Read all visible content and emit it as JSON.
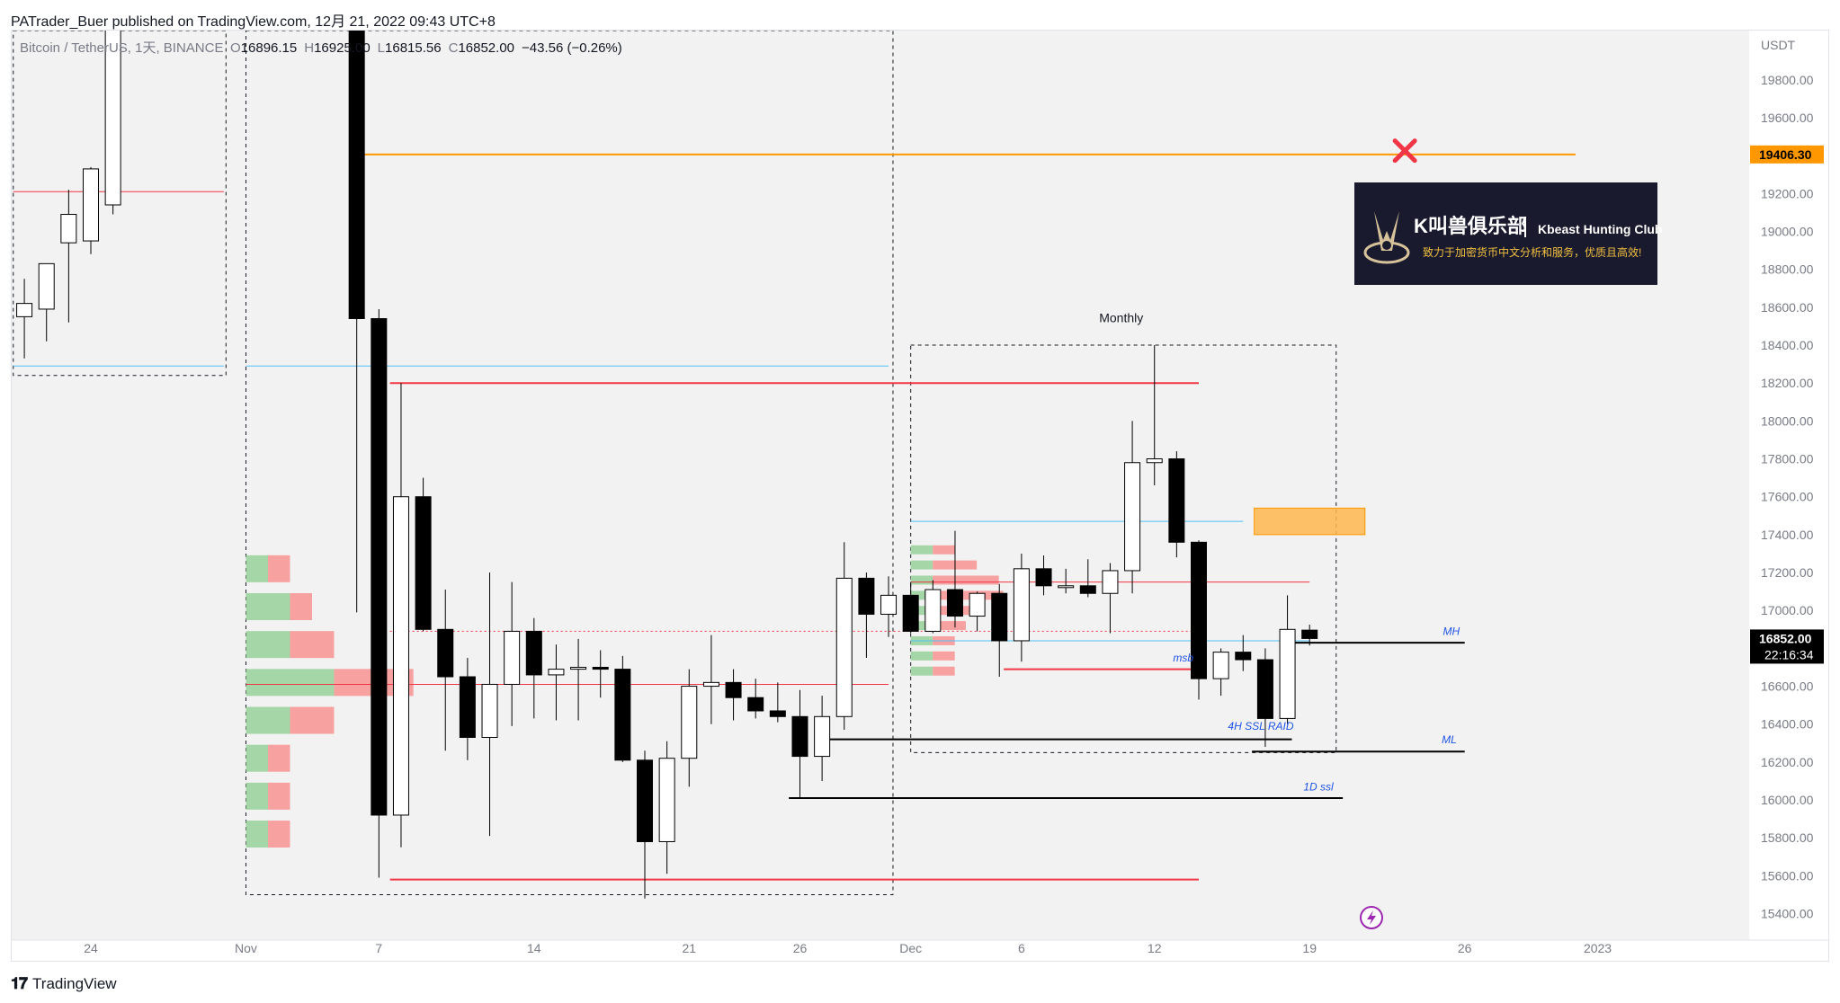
{
  "header": {
    "published": "PATrader_Buer published on TradingView.com, 12月 21, 2022 09:43 UTC+8"
  },
  "footer": {
    "logo_icon": "tradingview-logo-icon",
    "brand": "TradingView"
  },
  "colors": {
    "plot_bg": "#f3f2f2",
    "bull_body": "#ffffff",
    "bear_body": "#000000",
    "red_line": "#f23645",
    "blue_line": "#4fc3f7",
    "orange_line": "#ff9800",
    "orange_zone": "#ffb74d",
    "vp_green": "#a5d6a7",
    "vp_red": "#f7a1a1",
    "label_blue": "#1e53e5",
    "axis_text": "#787b86"
  },
  "chart_data": {
    "type": "candlestick",
    "symbol": "Bitcoin / TetherUS, 1天, BINANCE",
    "ohlc_legend": {
      "o_label": "O",
      "o": "16896.15",
      "h_label": "H",
      "h": "16925.00",
      "l_label": "L",
      "l": "16815.56",
      "c_label": "C",
      "c": "16852.00",
      "change": "−43.56 (−0.26%)"
    },
    "currency": "USDT",
    "ylim": [
      15270,
      20060
    ],
    "y_ticks": [
      15400,
      15600,
      15800,
      16000,
      16200,
      16400,
      16600,
      16800,
      17000,
      17200,
      17400,
      17600,
      17800,
      18000,
      18200,
      18400,
      18600,
      18800,
      19000,
      19200,
      19400,
      19600,
      19800
    ],
    "y_tick_labels": [
      "15400.00",
      "15600.00",
      "15800.00",
      "16000.00",
      "16200.00",
      "16400.00",
      "16600.00",
      "16800.00",
      "17000.00",
      "17200.00",
      "17400.00",
      "17600.00",
      "17800.00",
      "18000.00",
      "18200.00",
      "18400.00",
      "18600.00",
      "18800.00",
      "19000.00",
      "19200.00",
      "19400.00",
      "19600.00",
      "19800.00"
    ],
    "x_ticks": [
      {
        "day": 24,
        "label": "24"
      },
      {
        "day": 31,
        "label": "Nov"
      },
      {
        "day": 37,
        "label": "7"
      },
      {
        "day": 44,
        "label": "14"
      },
      {
        "day": 51,
        "label": "21"
      },
      {
        "day": 56,
        "label": "26"
      },
      {
        "day": 61,
        "label": "Dec"
      },
      {
        "day": 66,
        "label": "6"
      },
      {
        "day": 72,
        "label": "12"
      },
      {
        "day": 79,
        "label": "19"
      },
      {
        "day": 86,
        "label": "26"
      },
      {
        "day": 92,
        "label": "2023"
      }
    ],
    "candles": [
      {
        "d": 21,
        "o": 18550,
        "h": 18750,
        "l": 18330,
        "c": 18620
      },
      {
        "d": 22,
        "o": 18590,
        "h": 18830,
        "l": 18420,
        "c": 18830
      },
      {
        "d": 23,
        "o": 18940,
        "h": 19220,
        "l": 18520,
        "c": 19090
      },
      {
        "d": 24,
        "o": 18950,
        "h": 19340,
        "l": 18880,
        "c": 19330
      },
      {
        "d": 25,
        "o": 19140,
        "h": 20250,
        "l": 19090,
        "c": 20100
      },
      {
        "d": 36,
        "o": 20900,
        "h": 21000,
        "l": 16990,
        "c": 18540
      },
      {
        "d": 37,
        "o": 18540,
        "h": 18590,
        "l": 15590,
        "c": 15920
      },
      {
        "d": 38,
        "o": 15920,
        "h": 18200,
        "l": 15750,
        "c": 17600
      },
      {
        "d": 39,
        "o": 17600,
        "h": 17700,
        "l": 16890,
        "c": 16900
      },
      {
        "d": 40,
        "o": 16900,
        "h": 17110,
        "l": 16260,
        "c": 16650
      },
      {
        "d": 41,
        "o": 16650,
        "h": 16750,
        "l": 16210,
        "c": 16330
      },
      {
        "d": 42,
        "o": 16330,
        "h": 17200,
        "l": 15810,
        "c": 16610
      },
      {
        "d": 43,
        "o": 16610,
        "h": 17150,
        "l": 16390,
        "c": 16890
      },
      {
        "d": 44,
        "o": 16890,
        "h": 16960,
        "l": 16430,
        "c": 16660
      },
      {
        "d": 45,
        "o": 16660,
        "h": 16820,
        "l": 16420,
        "c": 16690
      },
      {
        "d": 46,
        "o": 16690,
        "h": 16850,
        "l": 16420,
        "c": 16700
      },
      {
        "d": 47,
        "o": 16700,
        "h": 16790,
        "l": 16540,
        "c": 16690
      },
      {
        "d": 48,
        "o": 16690,
        "h": 16760,
        "l": 16200,
        "c": 16210
      },
      {
        "d": 49,
        "o": 16210,
        "h": 16260,
        "l": 15480,
        "c": 15780
      },
      {
        "d": 50,
        "o": 15780,
        "h": 16310,
        "l": 15610,
        "c": 16220
      },
      {
        "d": 51,
        "o": 16220,
        "h": 16690,
        "l": 16070,
        "c": 16600
      },
      {
        "d": 52,
        "o": 16600,
        "h": 16870,
        "l": 16400,
        "c": 16620
      },
      {
        "d": 53,
        "o": 16620,
        "h": 16690,
        "l": 16420,
        "c": 16540
      },
      {
        "d": 54,
        "o": 16540,
        "h": 16640,
        "l": 16430,
        "c": 16470
      },
      {
        "d": 55,
        "o": 16470,
        "h": 16620,
        "l": 16410,
        "c": 16440
      },
      {
        "d": 56,
        "o": 16440,
        "h": 16580,
        "l": 16010,
        "c": 16230
      },
      {
        "d": 57,
        "o": 16230,
        "h": 16550,
        "l": 16100,
        "c": 16440
      },
      {
        "d": 58,
        "o": 16440,
        "h": 17360,
        "l": 16370,
        "c": 17170
      },
      {
        "d": 59,
        "o": 17170,
        "h": 17200,
        "l": 16750,
        "c": 16980
      },
      {
        "d": 60,
        "o": 16980,
        "h": 17180,
        "l": 16860,
        "c": 17080
      },
      {
        "d": 61,
        "o": 17080,
        "h": 17150,
        "l": 16880,
        "c": 16890
      },
      {
        "d": 62,
        "o": 16890,
        "h": 17160,
        "l": 16880,
        "c": 17110
      },
      {
        "d": 63,
        "o": 17110,
        "h": 17420,
        "l": 16910,
        "c": 16970
      },
      {
        "d": 64,
        "o": 16970,
        "h": 17100,
        "l": 16890,
        "c": 17090
      },
      {
        "d": 65,
        "o": 17090,
        "h": 17140,
        "l": 16650,
        "c": 16840
      },
      {
        "d": 66,
        "o": 16840,
        "h": 17300,
        "l": 16730,
        "c": 17220
      },
      {
        "d": 67,
        "o": 17220,
        "h": 17290,
        "l": 17080,
        "c": 17130
      },
      {
        "d": 68,
        "o": 17130,
        "h": 17220,
        "l": 17090,
        "c": 17130
      },
      {
        "d": 69,
        "o": 17130,
        "h": 17270,
        "l": 17070,
        "c": 17090
      },
      {
        "d": 70,
        "o": 17090,
        "h": 17250,
        "l": 16880,
        "c": 17210
      },
      {
        "d": 71,
        "o": 17210,
        "h": 18000,
        "l": 17090,
        "c": 17780
      },
      {
        "d": 72,
        "o": 17780,
        "h": 18400,
        "l": 17660,
        "c": 17800
      },
      {
        "d": 73,
        "o": 17800,
        "h": 17840,
        "l": 17280,
        "c": 17360
      },
      {
        "d": 74,
        "o": 17360,
        "h": 17370,
        "l": 16530,
        "c": 16640
      },
      {
        "d": 75,
        "o": 16640,
        "h": 16800,
        "l": 16550,
        "c": 16780
      },
      {
        "d": 76,
        "o": 16780,
        "h": 16870,
        "l": 16680,
        "c": 16740
      },
      {
        "d": 77,
        "o": 16740,
        "h": 16800,
        "l": 16280,
        "c": 16430
      },
      {
        "d": 78,
        "o": 16430,
        "h": 17080,
        "l": 16400,
        "c": 16900
      },
      {
        "d": 79,
        "o": 16896,
        "h": 16925,
        "l": 16815,
        "c": 16852
      }
    ],
    "levels": [
      {
        "name": "orange-level-line",
        "price": 19406.3,
        "from": 36,
        "to": 91,
        "color": "orange",
        "width": 2
      },
      {
        "name": "red-line-left-top",
        "price": 19210,
        "from": 20.5,
        "to": 30,
        "color": "red",
        "width": 1
      },
      {
        "name": "blue-line-left",
        "price": 18290,
        "from": 20.5,
        "to": 30,
        "color": "blue",
        "width": 1
      },
      {
        "name": "blue-line-mid",
        "price": 18290,
        "from": 31,
        "to": 60,
        "color": "blue",
        "width": 1
      },
      {
        "name": "red-line-upper",
        "price": 18200,
        "from": 37.5,
        "to": 74,
        "color": "red",
        "width": 2
      },
      {
        "name": "blue-line-monthly",
        "price": 17470,
        "from": 61,
        "to": 76,
        "color": "blue",
        "width": 1
      },
      {
        "name": "red-line-range",
        "price": 17150,
        "from": 61,
        "to": 79,
        "color": "red",
        "width": 1
      },
      {
        "name": "blue-line-low",
        "price": 16840,
        "from": 61,
        "to": 79,
        "color": "blue",
        "width": 1
      },
      {
        "name": "red-line-poc",
        "price": 16610,
        "from": 31,
        "to": 60,
        "color": "red",
        "width": 1
      },
      {
        "name": "red-line-msb",
        "price": 16690,
        "from": 65.2,
        "to": 74,
        "color": "red",
        "width": 2
      },
      {
        "name": "red-line-bottom",
        "price": 15580,
        "from": 37.5,
        "to": 74,
        "color": "red",
        "width": 2
      },
      {
        "name": "black-line-mh",
        "price": 16830,
        "from": 78,
        "to": 86,
        "color": "black",
        "width": 2
      },
      {
        "name": "black-line-ssl",
        "price": 16320,
        "from": 57.3,
        "to": 78.2,
        "color": "black",
        "width": 2
      },
      {
        "name": "black-line-ml",
        "price": 16255,
        "from": 76.4,
        "to": 86,
        "color": "black",
        "width": 2
      },
      {
        "name": "black-line-1d",
        "price": 16010,
        "from": 55.5,
        "to": 80.5,
        "color": "black",
        "width": 2
      }
    ],
    "dotted_lines": [
      {
        "name": "dotted-red-line",
        "price": 16890,
        "from": 37.5,
        "to": 74
      }
    ],
    "boxes": [
      {
        "name": "range-box-left",
        "p_top": 20060,
        "p_bot": 18240,
        "from": 20.5,
        "to": 30.1
      },
      {
        "name": "range-box-nov",
        "p_top": 20060,
        "p_bot": 15500,
        "from": 31,
        "to": 60.2
      },
      {
        "name": "monthly-range-box",
        "p_top": 18400,
        "p_bot": 16250,
        "from": 61,
        "to": 80.2
      }
    ],
    "zones": [
      {
        "name": "orange-supply-zone",
        "p_top": 17540,
        "p_bot": 17400,
        "from": 76.5,
        "to": 81.5
      }
    ],
    "volume_profiles": [
      {
        "name": "volume-profile-nov",
        "x0": 31,
        "row_height": 168,
        "rows": [
          {
            "p": 17220,
            "g": 1.0,
            "r": 1.0
          },
          {
            "p": 17020,
            "g": 2.0,
            "r": 1.0
          },
          {
            "p": 16820,
            "g": 2.0,
            "r": 2.0
          },
          {
            "p": 16620,
            "g": 4.0,
            "r": 3.6
          },
          {
            "p": 16420,
            "g": 2.0,
            "r": 2.0
          },
          {
            "p": 16220,
            "g": 1.0,
            "r": 1.0
          },
          {
            "p": 16020,
            "g": 1.0,
            "r": 1.0
          },
          {
            "p": 15820,
            "g": 1.0,
            "r": 1.0
          }
        ]
      },
      {
        "name": "volume-profile-monthly",
        "x0": 61,
        "row_height": 65,
        "rows": [
          {
            "p": 17320,
            "g": 1.0,
            "r": 1.0
          },
          {
            "p": 17240,
            "g": 1.0,
            "r": 2.0
          },
          {
            "p": 17160,
            "g": 1.0,
            "r": 3.0
          },
          {
            "p": 17080,
            "g": 1.0,
            "r": 3.2
          },
          {
            "p": 17000,
            "g": 1.0,
            "r": 2.0
          },
          {
            "p": 16920,
            "g": 1.0,
            "r": 1.5
          },
          {
            "p": 16840,
            "g": 1.0,
            "r": 1.0
          },
          {
            "p": 16760,
            "g": 1.0,
            "r": 1.0
          },
          {
            "p": 16680,
            "g": 1.0,
            "r": 1.0
          }
        ]
      }
    ],
    "annotations": [
      {
        "name": "monthly-label",
        "text": "Monthly",
        "d": 70.5,
        "p": 18520,
        "style": "dark"
      },
      {
        "name": "mh-label",
        "text": "MH",
        "d": 85.4,
        "p": 16870,
        "style": "blue"
      },
      {
        "name": "msb-label",
        "text": "msb",
        "d": 73.3,
        "p": 16730,
        "style": "blue"
      },
      {
        "name": "ssl-raid-label",
        "text": "4H SSL RAID",
        "d": 76.8,
        "p": 16370,
        "style": "blue"
      },
      {
        "name": "ml-label",
        "text": "ML",
        "d": 85.3,
        "p": 16300,
        "style": "blue"
      },
      {
        "name": "ssl-1d-label",
        "text": "1D ssl",
        "d": 79.4,
        "p": 16050,
        "style": "blue"
      }
    ],
    "markers": [
      {
        "name": "cross-marker-icon",
        "d": 83.3,
        "p": 19426
      }
    ],
    "price_labels": [
      {
        "name": "price-label-orange",
        "text": "19406.30",
        "p": 19406.3,
        "bg": "#ff9800",
        "fg": "#000000"
      },
      {
        "name": "price-label-current",
        "text": "16852.00",
        "sub": "22:16:34",
        "p": 16852,
        "bg": "#000000",
        "fg": "#ffffff"
      }
    ]
  },
  "brand_card": {
    "icon": "horned-beast-logo-icon",
    "name": "K叫兽俱乐部",
    "english": "Kbeast Hunting Club",
    "tagline": "致力于加密货币中文分析和服务，优质且高效!"
  },
  "floating_icon": "lightning-icon"
}
